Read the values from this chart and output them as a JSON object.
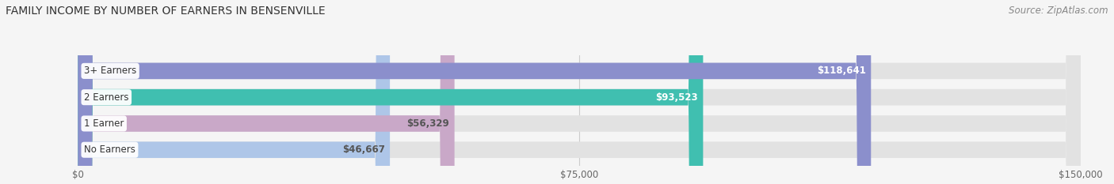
{
  "title": "FAMILY INCOME BY NUMBER OF EARNERS IN BENSENVILLE",
  "source": "Source: ZipAtlas.com",
  "categories": [
    "No Earners",
    "1 Earner",
    "2 Earners",
    "3+ Earners"
  ],
  "values": [
    46667,
    56329,
    93523,
    118641
  ],
  "labels": [
    "$46,667",
    "$56,329",
    "$93,523",
    "$118,641"
  ],
  "bar_colors": [
    "#aec6e8",
    "#c9a8c8",
    "#40bfb0",
    "#8b8fcc"
  ],
  "bar_bg_color": "#e2e2e2",
  "label_colors": [
    "#555555",
    "#555555",
    "#ffffff",
    "#ffffff"
  ],
  "xlim": [
    0,
    150000
  ],
  "xticklabels": [
    "$0",
    "$75,000",
    "$150,000"
  ],
  "xtick_values": [
    0,
    75000,
    150000
  ],
  "title_fontsize": 10,
  "source_fontsize": 8.5,
  "background_color": "#f5f5f5",
  "bar_height": 0.62
}
